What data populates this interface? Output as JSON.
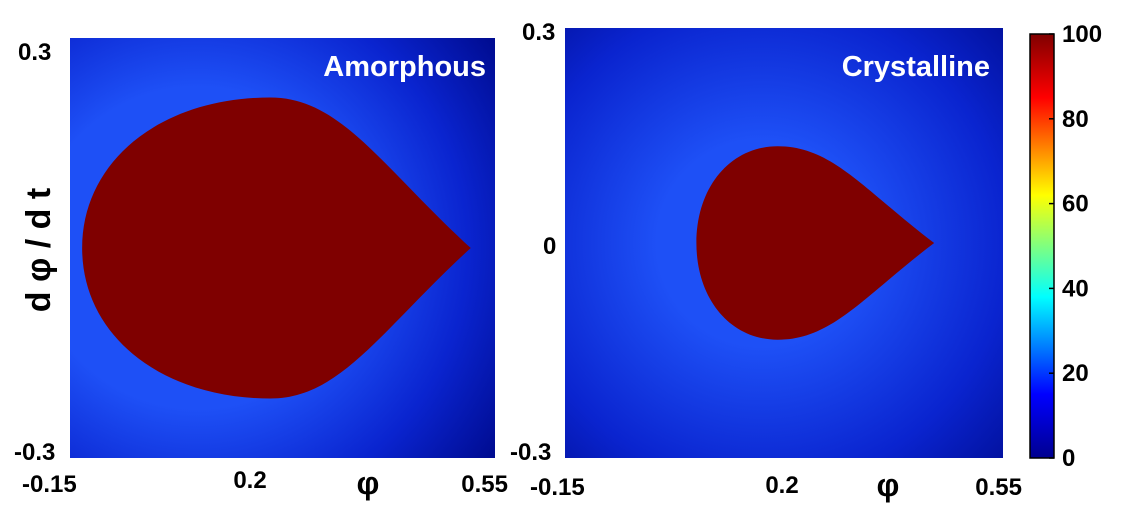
{
  "chart_data": [
    {
      "type": "heatmap",
      "title": "Amorphous",
      "xlabel": "φ",
      "ylabel": "d φ / d t",
      "xlim": [
        -0.15,
        0.55
      ],
      "ylim": [
        -0.3,
        0.3
      ],
      "x_ticks": [
        "-0.15",
        "0.2",
        "0.55"
      ],
      "y_ticks": [
        "0.3",
        "-0.3"
      ],
      "region": {
        "value": 100,
        "shape": "teardrop",
        "x_range": [
          -0.13,
          0.51
        ],
        "y_range": [
          -0.215,
          0.215
        ],
        "widest_x": 0.18,
        "cusp": [
          0.51,
          0.0
        ]
      },
      "background_value": 5
    },
    {
      "type": "heatmap",
      "title": "Crystalline",
      "xlabel": "φ",
      "ylabel": "",
      "xlim": [
        -0.15,
        0.55
      ],
      "ylim": [
        -0.3,
        0.3
      ],
      "x_ticks": [
        "-0.15",
        "0.2",
        "0.55"
      ],
      "y_ticks": [
        "0.3",
        "0",
        "-0.3"
      ],
      "region": {
        "value": 100,
        "shape": "teardrop",
        "x_range": [
          0.06,
          0.44
        ],
        "y_range": [
          -0.135,
          0.135
        ],
        "widest_x": 0.19,
        "cusp": [
          0.44,
          0.0
        ]
      },
      "background_value": 5
    }
  ],
  "colorbar": {
    "min": 0,
    "max": 100,
    "ticks": [
      "100",
      "80",
      "60",
      "40",
      "20",
      "0"
    ],
    "colormap": "jet",
    "stops": [
      "#00008f",
      "#0000ff",
      "#00ffff",
      "#ffff00",
      "#ff0000",
      "#800000"
    ]
  },
  "colors": {
    "inside": "#7f0000",
    "background_dark": "#000a8c",
    "background_mid": "#0a1ecf",
    "background_light": "#1a46f4"
  }
}
